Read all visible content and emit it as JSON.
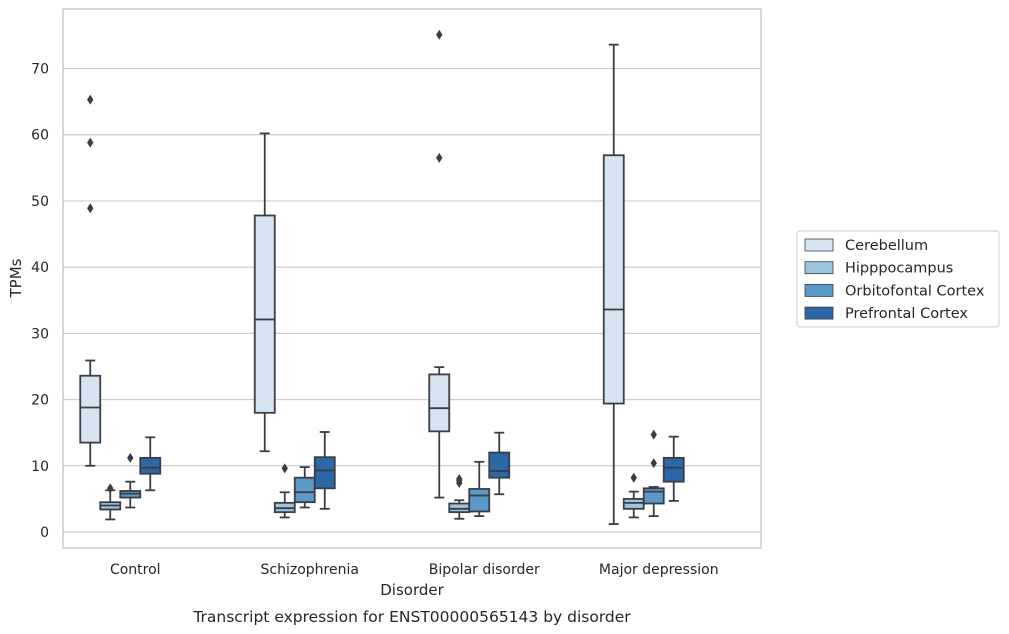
{
  "chart_data": {
    "type": "box",
    "title": "",
    "caption": "Transcript expression for ENST00000565143 by disorder",
    "xlabel": "Disorder",
    "ylabel": "TPMs",
    "ylim": [
      -2.3,
      78.5
    ],
    "yticks": [
      0,
      10,
      20,
      30,
      40,
      50,
      60,
      70
    ],
    "grid": "horizontal",
    "legend_position": "right",
    "categories": [
      "Control",
      "Schizophrenia",
      "Bipolar disorder",
      "Major depression"
    ],
    "series": [
      {
        "name": "Cerebellum",
        "color": "#d6e4f1",
        "boxes": [
          {
            "q1": 13.5,
            "median": 18.8,
            "q3": 23.6,
            "whisker_low": 10.0,
            "whisker_high": 25.9,
            "outliers": [
              48.9,
              58.8,
              65.3
            ]
          },
          {
            "q1": 18.0,
            "median": 32.1,
            "q3": 47.8,
            "whisker_low": 12.2,
            "whisker_high": 60.2,
            "outliers": []
          },
          {
            "q1": 15.2,
            "median": 18.7,
            "q3": 23.8,
            "whisker_low": 5.2,
            "whisker_high": 24.9,
            "outliers": [
              56.5,
              75.1
            ]
          },
          {
            "q1": 19.4,
            "median": 33.6,
            "q3": 56.9,
            "whisker_low": 1.2,
            "whisker_high": 73.6,
            "outliers": []
          }
        ]
      },
      {
        "name": "Hipppocampus",
        "color": "#9cc4dc",
        "boxes": [
          {
            "q1": 3.4,
            "median": 4.0,
            "q3": 4.5,
            "whisker_low": 1.9,
            "whisker_high": 6.3,
            "outliers": [
              6.6
            ]
          },
          {
            "q1": 3.0,
            "median": 3.6,
            "q3": 4.4,
            "whisker_low": 2.2,
            "whisker_high": 6.0,
            "outliers": [
              9.6
            ]
          },
          {
            "q1": 3.0,
            "median": 3.5,
            "q3": 4.3,
            "whisker_low": 2.0,
            "whisker_high": 4.8,
            "outliers": [
              7.4,
              7.8,
              8.0
            ]
          },
          {
            "q1": 3.5,
            "median": 4.4,
            "q3": 5.0,
            "whisker_low": 2.2,
            "whisker_high": 6.1,
            "outliers": [
              8.2
            ]
          }
        ]
      },
      {
        "name": "Orbitofontal Cortex",
        "color": "#5a9ac7",
        "boxes": [
          {
            "q1": 5.2,
            "median": 5.8,
            "q3": 6.2,
            "whisker_low": 3.7,
            "whisker_high": 7.6,
            "outliers": [
              11.2
            ]
          },
          {
            "q1": 4.5,
            "median": 6.0,
            "q3": 8.2,
            "whisker_low": 3.7,
            "whisker_high": 9.8,
            "outliers": []
          },
          {
            "q1": 3.1,
            "median": 5.5,
            "q3": 6.5,
            "whisker_low": 2.4,
            "whisker_high": 10.6,
            "outliers": []
          },
          {
            "q1": 4.3,
            "median": 6.1,
            "q3": 6.6,
            "whisker_low": 2.4,
            "whisker_high": 6.8,
            "outliers": [
              10.4,
              14.7
            ]
          }
        ]
      },
      {
        "name": "Prefrontal Cortex",
        "color": "#2c67a8",
        "boxes": [
          {
            "q1": 8.8,
            "median": 9.7,
            "q3": 11.2,
            "whisker_low": 6.3,
            "whisker_high": 14.3,
            "outliers": []
          },
          {
            "q1": 6.6,
            "median": 9.3,
            "q3": 11.3,
            "whisker_low": 3.5,
            "whisker_high": 15.1,
            "outliers": []
          },
          {
            "q1": 8.2,
            "median": 9.2,
            "q3": 12.0,
            "whisker_low": 5.7,
            "whisker_high": 15.0,
            "outliers": []
          },
          {
            "q1": 7.6,
            "median": 9.7,
            "q3": 11.2,
            "whisker_low": 4.7,
            "whisker_high": 14.4,
            "outliers": []
          }
        ]
      }
    ]
  }
}
